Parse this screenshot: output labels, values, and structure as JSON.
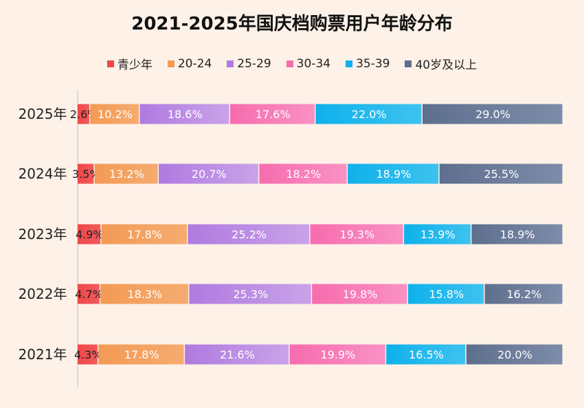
{
  "chart_data": {
    "type": "bar",
    "orientation": "horizontal",
    "stacked": true,
    "percent": true,
    "title": "2021-2025年国庆档购票用户年龄分布",
    "categories": [
      "2025年",
      "2024年",
      "2023年",
      "2022年",
      "2021年"
    ],
    "legend_position": "top",
    "grid": false,
    "xlim": [
      0,
      100
    ],
    "series": [
      {
        "name": "青少年",
        "color": "#f0474a",
        "color2": "#f25a5c",
        "values": [
          2.6,
          3.5,
          4.9,
          4.7,
          4.3
        ]
      },
      {
        "name": "20-24",
        "color": "#f39a55",
        "color2": "#f5ac70",
        "values": [
          10.2,
          13.2,
          17.8,
          18.3,
          17.8
        ]
      },
      {
        "name": "25-29",
        "color": "#b07ae0",
        "color2": "#c9a2e8",
        "values": [
          18.6,
          20.7,
          25.2,
          25.3,
          21.6
        ]
      },
      {
        "name": "30-34",
        "color": "#f76cae",
        "color2": "#f991c4",
        "values": [
          17.6,
          18.2,
          19.3,
          19.8,
          19.9
        ]
      },
      {
        "name": "35-39",
        "color": "#0eb1eb",
        "color2": "#3ec2ef",
        "values": [
          22.0,
          18.9,
          13.9,
          15.8,
          16.5
        ]
      },
      {
        "name": "40岁及以上",
        "color": "#5e6f8e",
        "color2": "#7d8ca8",
        "values": [
          29.0,
          25.5,
          18.9,
          16.2,
          20.0
        ]
      }
    ]
  }
}
